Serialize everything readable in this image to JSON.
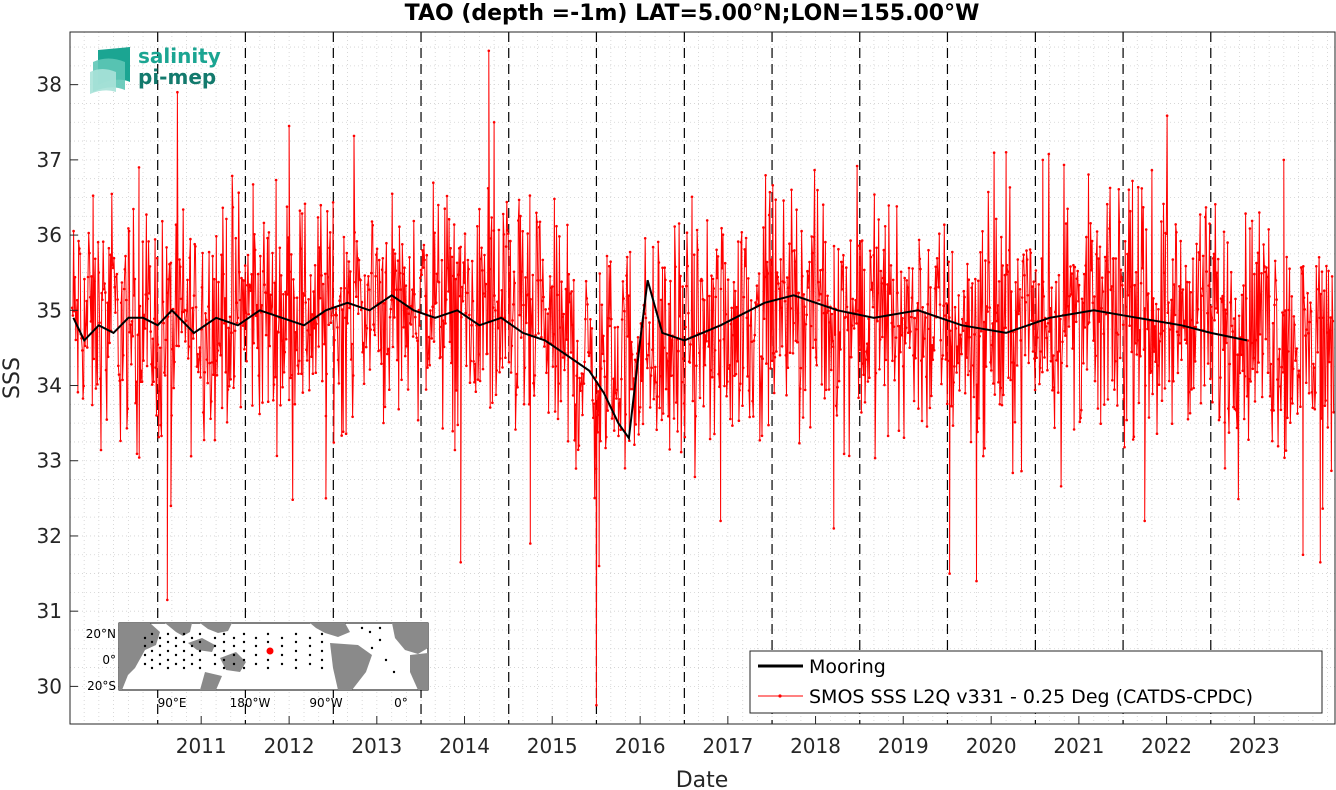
{
  "chart_data": {
    "type": "line",
    "title": "TAO (depth =-1m) LAT=5.00°N;LON=155.00°W",
    "xlabel": "Date",
    "ylabel": "SSS",
    "xlim": [
      "2010-01-01",
      "2024-06-01"
    ],
    "ylim": [
      29.5,
      38.7
    ],
    "x_ticks": [
      "2011",
      "2012",
      "2013",
      "2014",
      "2015",
      "2016",
      "2017",
      "2018",
      "2019",
      "2020",
      "2021",
      "2022",
      "2023"
    ],
    "y_ticks": [
      "30",
      "31",
      "32",
      "33",
      "34",
      "35",
      "36",
      "37",
      "38"
    ],
    "year_boundaries": [
      "2011-01-01",
      "2012-01-01",
      "2013-01-01",
      "2014-01-01",
      "2015-01-01",
      "2016-01-01",
      "2017-01-01",
      "2018-01-01",
      "2019-01-01",
      "2020-01-01",
      "2021-01-01",
      "2022-01-01",
      "2023-01-01"
    ],
    "grid": true,
    "legend_position": "bottom-right",
    "series": [
      {
        "name": "Mooring",
        "color": "#000000",
        "points": [
          [
            "2010-01-15",
            34.9
          ],
          [
            "2010-03-01",
            34.6
          ],
          [
            "2010-05-01",
            34.8
          ],
          [
            "2010-07-01",
            34.7
          ],
          [
            "2010-09-01",
            34.9
          ],
          [
            "2010-11-01",
            34.9
          ],
          [
            "2011-01-01",
            34.8
          ],
          [
            "2011-03-01",
            35.0
          ],
          [
            "2011-06-01",
            34.7
          ],
          [
            "2011-09-01",
            34.9
          ],
          [
            "2011-12-01",
            34.8
          ],
          [
            "2012-03-01",
            35.0
          ],
          [
            "2012-06-01",
            34.9
          ],
          [
            "2012-09-01",
            34.8
          ],
          [
            "2012-12-01",
            35.0
          ],
          [
            "2013-03-01",
            35.1
          ],
          [
            "2013-06-01",
            35.0
          ],
          [
            "2013-09-01",
            35.2
          ],
          [
            "2013-12-01",
            35.0
          ],
          [
            "2014-03-01",
            34.9
          ],
          [
            "2014-06-01",
            35.0
          ],
          [
            "2014-09-01",
            34.8
          ],
          [
            "2014-12-01",
            34.9
          ],
          [
            "2015-03-01",
            34.7
          ],
          [
            "2015-06-01",
            34.6
          ],
          [
            "2015-09-01",
            34.4
          ],
          [
            "2015-12-01",
            34.2
          ],
          [
            "2016-02-01",
            33.9
          ],
          [
            "2016-04-01",
            33.5
          ],
          [
            "2016-05-15",
            33.3
          ],
          [
            "2016-07-01",
            34.6
          ],
          [
            "2016-08-01",
            35.4
          ],
          [
            "2016-10-01",
            34.7
          ],
          [
            "2017-01-01",
            34.6
          ],
          [
            "2017-06-01",
            34.8
          ],
          [
            "2017-12-01",
            35.1
          ],
          [
            "2018-04-01",
            35.2
          ],
          [
            "2018-10-01",
            35.0
          ],
          [
            "2019-03-01",
            34.9
          ],
          [
            "2019-09-01",
            35.0
          ],
          [
            "2020-03-01",
            34.8
          ],
          [
            "2020-09-01",
            34.7
          ],
          [
            "2021-03-01",
            34.9
          ],
          [
            "2021-09-01",
            35.0
          ],
          [
            "2022-03-01",
            34.9
          ],
          [
            "2022-09-01",
            34.8
          ],
          [
            "2023-01-01",
            34.7
          ],
          [
            "2023-06-01",
            34.6
          ]
        ]
      },
      {
        "name": "SMOS SSS L2Q v331 - 0.25 Deg (CATDS-CPDC)",
        "color": "#ff0000",
        "baseline": [
          [
            "2010-01-01",
            34.9
          ],
          [
            "2010-07-01",
            34.8
          ],
          [
            "2011-01-01",
            34.75
          ],
          [
            "2011-07-01",
            34.9
          ],
          [
            "2012-01-01",
            35.0
          ],
          [
            "2012-07-01",
            35.0
          ],
          [
            "2013-01-01",
            34.95
          ],
          [
            "2013-07-01",
            35.1
          ],
          [
            "2014-01-01",
            35.1
          ],
          [
            "2014-07-01",
            35.0
          ],
          [
            "2015-01-01",
            34.9
          ],
          [
            "2015-07-01",
            34.7
          ],
          [
            "2016-01-01",
            34.1
          ],
          [
            "2016-07-01",
            34.5
          ],
          [
            "2017-01-01",
            34.5
          ],
          [
            "2017-07-01",
            34.8
          ],
          [
            "2018-01-01",
            35.0
          ],
          [
            "2018-07-01",
            35.0
          ],
          [
            "2019-01-01",
            34.95
          ],
          [
            "2019-07-01",
            34.9
          ],
          [
            "2020-01-01",
            34.7
          ],
          [
            "2020-07-01",
            34.8
          ],
          [
            "2021-01-01",
            34.9
          ],
          [
            "2021-07-01",
            35.0
          ],
          [
            "2022-01-01",
            34.95
          ],
          [
            "2022-07-01",
            34.9
          ],
          [
            "2023-01-01",
            34.8
          ],
          [
            "2023-07-01",
            34.9
          ],
          [
            "2024-01-01",
            34.5
          ],
          [
            "2024-06-01",
            34.6
          ]
        ],
        "extremes": [
          [
            "2010-10-15",
            36.9
          ],
          [
            "2011-02-10",
            31.15
          ],
          [
            "2011-02-25",
            32.4
          ],
          [
            "2012-07-01",
            37.45
          ],
          [
            "2012-12-01",
            32.5
          ],
          [
            "2014-06-15",
            31.65
          ],
          [
            "2014-10-10",
            38.45
          ],
          [
            "2014-11-01",
            37.5
          ],
          [
            "2015-04-01",
            31.9
          ],
          [
            "2016-01-01",
            29.75
          ],
          [
            "2016-01-12",
            31.6
          ],
          [
            "2017-06-01",
            32.2
          ],
          [
            "2018-09-15",
            32.1
          ],
          [
            "2020-01-10",
            31.5
          ],
          [
            "2020-05-01",
            31.4
          ],
          [
            "2020-09-01",
            37.1
          ],
          [
            "2021-02-01",
            37.0
          ],
          [
            "2022-04-01",
            32.2
          ],
          [
            "2023-03-01",
            32.9
          ],
          [
            "2023-11-01",
            37.0
          ],
          [
            "2024-01-20",
            31.75
          ],
          [
            "2024-04-01",
            31.65
          ]
        ]
      }
    ]
  },
  "logo": {
    "line1": "salinity",
    "line2": "pi-mep"
  },
  "inset_map": {
    "lat_labels": [
      "20°N",
      "0°",
      "20°S"
    ],
    "lon_labels": [
      "90°E",
      "180°W",
      "90°W",
      "0°"
    ]
  },
  "legend": {
    "mooring_label": "Mooring",
    "smos_label": "SMOS SSS L2Q v331 - 0.25 Deg (CATDS-CPDC)"
  },
  "colors": {
    "mooring": "#000000",
    "smos": "#ff0000",
    "logo_teal": "#1ba592",
    "logo_dark": "#137a6d"
  }
}
